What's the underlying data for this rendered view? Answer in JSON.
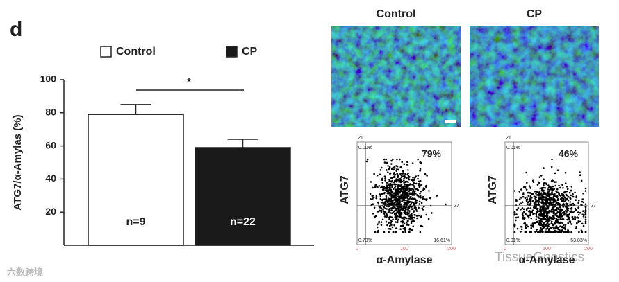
{
  "panel_label": "d",
  "chart_data": {
    "type": "bar",
    "y_label": "ATG7/α-Amylas (%)",
    "categories": [
      "Control",
      "CP"
    ],
    "values": [
      79,
      59
    ],
    "errors": [
      6,
      5
    ],
    "colors": [
      "#ffffff",
      "#1a1a1a"
    ],
    "ylim": [
      0,
      100
    ],
    "yticks": [
      20,
      40,
      60,
      80,
      100
    ],
    "annotations": [
      "n=9",
      "n=22"
    ],
    "significance": "*"
  },
  "flow_panels": [
    {
      "title": "Control",
      "percent": "79%",
      "y_label": "ATG7",
      "x_label": "α-Amylase",
      "quadrants": [
        "0.00%",
        "0.73%",
        "16.61%"
      ]
    },
    {
      "title": "CP",
      "percent": "46%",
      "y_label": "ATG7",
      "x_label": "α-Amylase",
      "quadrants": [
        "0.01%",
        "0.01%",
        "53.83%"
      ]
    }
  ],
  "gate_labels": [
    "21",
    "27"
  ],
  "flow_ticks": [
    "0",
    "100",
    "200"
  ],
  "watermarks": [
    "六数跨境",
    "TissueGnostics"
  ]
}
